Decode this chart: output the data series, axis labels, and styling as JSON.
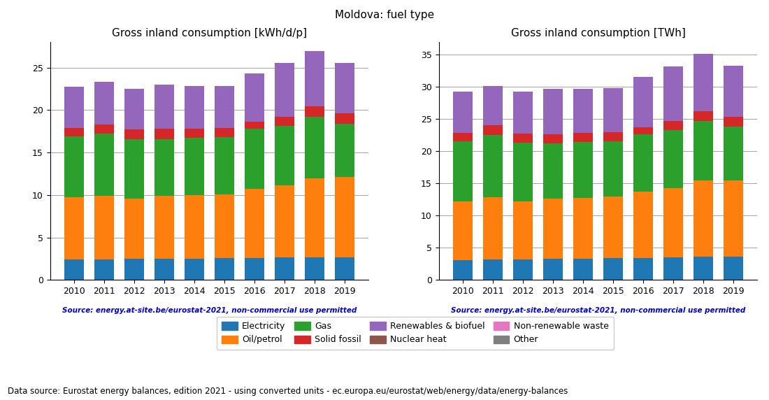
{
  "years": [
    2010,
    2011,
    2012,
    2013,
    2014,
    2015,
    2016,
    2017,
    2018,
    2019
  ],
  "title": "Moldova: fuel type",
  "subtitle_left": "Gross inland consumption [kWh/d/p]",
  "subtitle_right": "Gross inland consumption [TWh]",
  "source_text": "Source: energy.at-site.be/eurostat-2021, non-commercial use permitted",
  "footer_text": "Data source: Eurostat energy balances, edition 2021 - using converted units - ec.europa.eu/eurostat/web/energy/data/energy-balances",
  "colors": {
    "Electricity": "#1f77b4",
    "Oil/petrol": "#ff7f0e",
    "Gas": "#2ca02c",
    "Solid fossil": "#d62728",
    "Renewables & biofuel": "#9467bd",
    "Nuclear heat": "#8c564b",
    "Non-renewable waste": "#e377c2",
    "Other": "#7f7f7f"
  },
  "kWh_data": {
    "Electricity": [
      2.4,
      2.4,
      2.5,
      2.5,
      2.5,
      2.6,
      2.6,
      2.7,
      2.7,
      2.7
    ],
    "Oil/petrol": [
      7.3,
      7.5,
      7.1,
      7.4,
      7.5,
      7.5,
      8.1,
      8.4,
      9.3,
      9.4
    ],
    "Gas": [
      7.2,
      7.3,
      7.0,
      6.7,
      6.7,
      6.7,
      7.1,
      7.0,
      7.2,
      6.3
    ],
    "Solid fossil": [
      1.0,
      1.1,
      1.1,
      1.2,
      1.1,
      1.1,
      0.8,
      1.1,
      1.2,
      1.2
    ],
    "Renewables & biofuel": [
      4.8,
      5.0,
      4.8,
      5.2,
      5.0,
      4.9,
      5.7,
      6.3,
      6.5,
      5.9
    ],
    "Nuclear heat": [
      0.0,
      0.0,
      0.0,
      0.0,
      0.0,
      0.0,
      0.0,
      0.0,
      0.0,
      0.0
    ],
    "Non-renewable waste": [
      0.0,
      0.0,
      0.0,
      0.0,
      0.0,
      0.0,
      0.0,
      0.0,
      0.0,
      0.0
    ],
    "Other": [
      0.0,
      0.0,
      0.0,
      0.0,
      0.0,
      0.0,
      0.0,
      0.0,
      0.0,
      0.0
    ]
  },
  "TWh_data": {
    "Electricity": [
      3.1,
      3.2,
      3.2,
      3.3,
      3.3,
      3.4,
      3.4,
      3.5,
      3.6,
      3.6
    ],
    "Oil/petrol": [
      9.1,
      9.7,
      9.0,
      9.4,
      9.5,
      9.6,
      10.3,
      10.8,
      11.9,
      11.9
    ],
    "Gas": [
      9.4,
      9.7,
      9.2,
      8.5,
      8.7,
      8.6,
      9.0,
      9.0,
      9.2,
      8.4
    ],
    "Solid fossil": [
      1.3,
      1.5,
      1.4,
      1.5,
      1.4,
      1.4,
      1.0,
      1.4,
      1.5,
      1.5
    ],
    "Renewables & biofuel": [
      6.4,
      6.1,
      6.5,
      7.0,
      6.8,
      6.8,
      7.9,
      8.5,
      9.0,
      7.9
    ],
    "Nuclear heat": [
      0.0,
      0.0,
      0.0,
      0.0,
      0.0,
      0.0,
      0.0,
      0.0,
      0.0,
      0.0
    ],
    "Non-renewable waste": [
      0.0,
      0.0,
      0.0,
      0.0,
      0.0,
      0.0,
      0.0,
      0.0,
      0.0,
      0.0
    ],
    "Other": [
      0.0,
      0.0,
      0.0,
      0.0,
      0.0,
      0.0,
      0.0,
      0.0,
      0.0,
      0.0
    ]
  },
  "ylim_left": [
    0,
    28
  ],
  "ylim_right": [
    0,
    37
  ],
  "yticks_left": [
    0,
    5,
    10,
    15,
    20,
    25
  ],
  "yticks_right": [
    0,
    5,
    10,
    15,
    20,
    25,
    30,
    35
  ],
  "source_color": "#0000cc",
  "source_fontsize": 7.5,
  "footer_fontsize": 8.5,
  "title_fontsize": 11,
  "axis_title_fontsize": 11,
  "tick_fontsize": 9,
  "legend_fontsize": 9
}
